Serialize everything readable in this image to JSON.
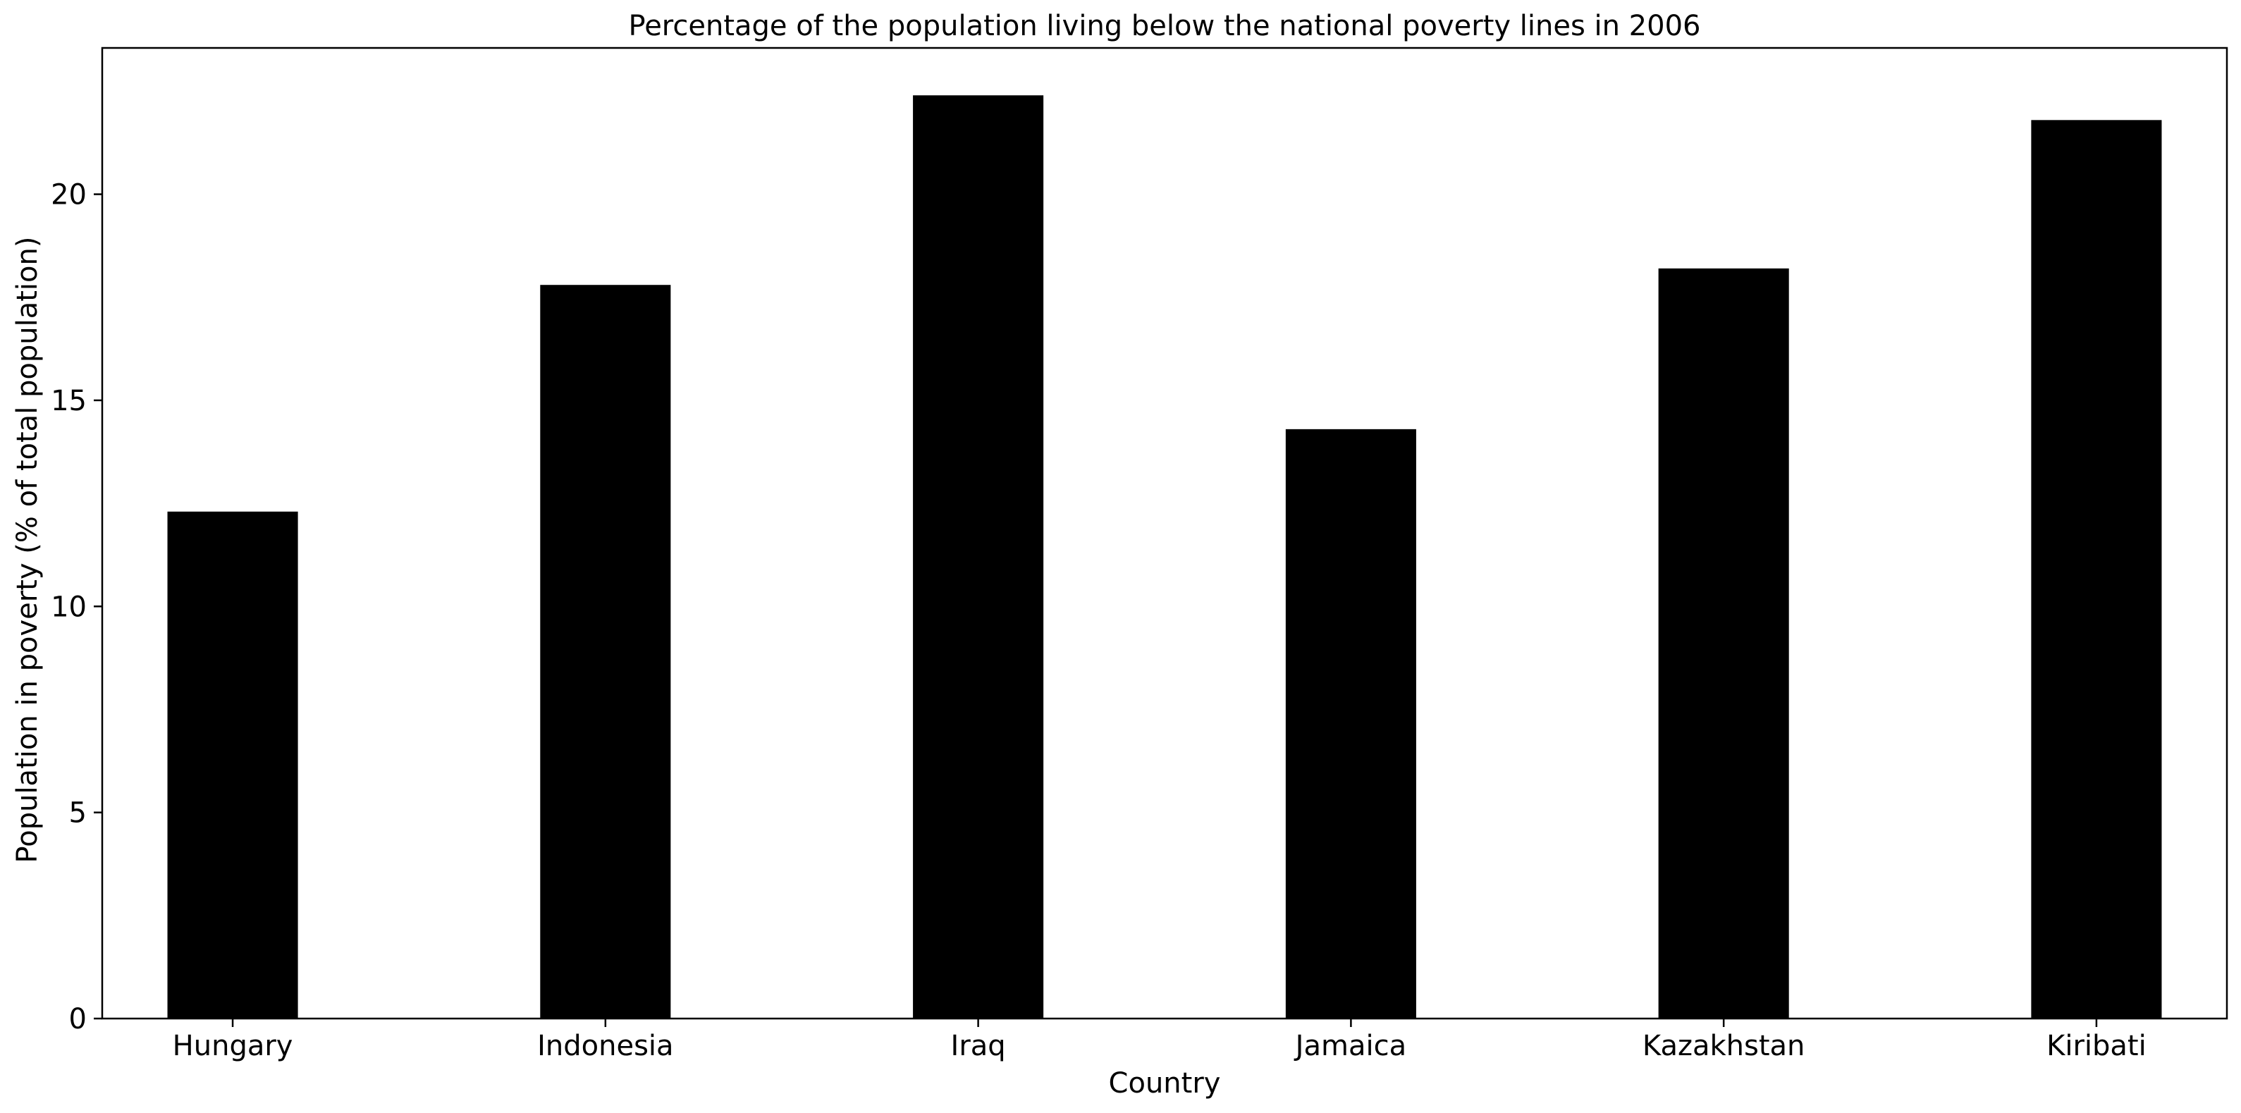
{
  "chart_data": {
    "type": "bar",
    "title": "Percentage of the population living below the national poverty lines in 2006",
    "xlabel": "Country",
    "ylabel": "Population in poverty (% of total population)",
    "categories": [
      "Hungary",
      "Indonesia",
      "Iraq",
      "Jamaica",
      "Kazakhstan",
      "Kiribati"
    ],
    "values": [
      12.3,
      17.8,
      22.4,
      14.3,
      18.2,
      21.8
    ],
    "ylim": [
      0,
      23.55
    ],
    "yticks": [
      0,
      5,
      10,
      15,
      20
    ],
    "grid": false,
    "bar_color": "#000000"
  }
}
